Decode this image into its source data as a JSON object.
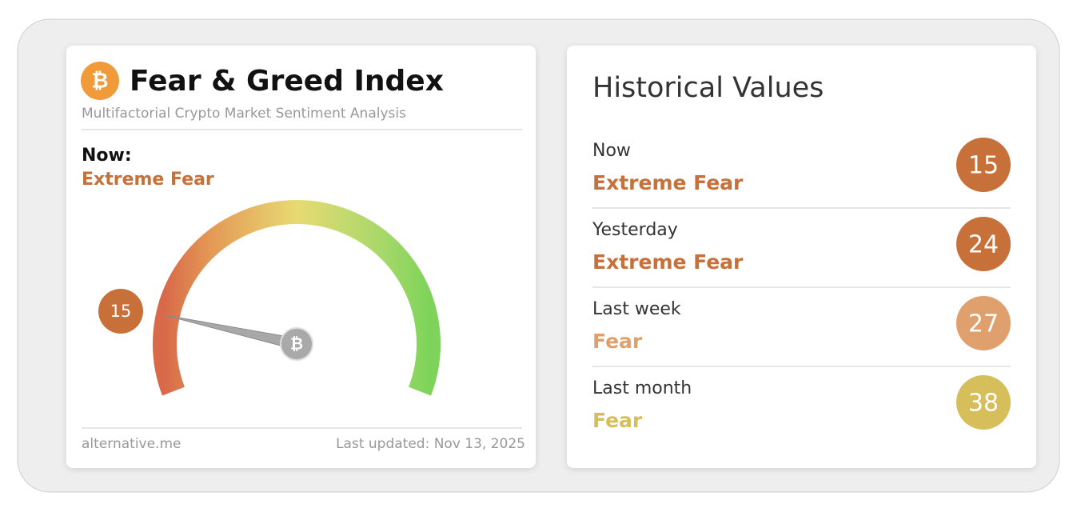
{
  "header": {
    "title": "Fear & Greed Index",
    "subtitle": "Multifactorial Crypto Market Sentiment Analysis"
  },
  "now": {
    "label": "Now:",
    "classification": "Extreme Fear",
    "value": 15,
    "color": "#c8703a"
  },
  "footer": {
    "source": "alternative.me",
    "updated": "Last updated: Nov 13, 2025"
  },
  "historical": {
    "title": "Historical Values",
    "items": [
      {
        "period": "Now",
        "classification": "Extreme Fear",
        "value": 15,
        "color": "#c8703a"
      },
      {
        "period": "Yesterday",
        "classification": "Extreme Fear",
        "value": 24,
        "color": "#c8703a"
      },
      {
        "period": "Last week",
        "classification": "Fear",
        "value": 27,
        "color": "#dfa06e"
      },
      {
        "period": "Last month",
        "classification": "Fear",
        "value": 38,
        "color": "#d6bf5a"
      }
    ]
  }
}
